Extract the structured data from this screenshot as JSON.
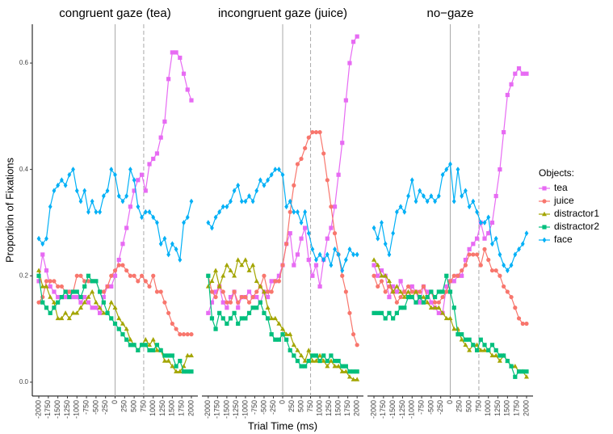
{
  "x_label": "Trial Time (ms)",
  "y_label": "Proportion of Fixations",
  "legend_title": "Objects:",
  "chart_data": [
    {
      "type": "line",
      "title": "congruent gaze (tea)",
      "x": [
        -2000,
        -1900,
        -1800,
        -1700,
        -1600,
        -1500,
        -1400,
        -1300,
        -1200,
        -1100,
        -1000,
        -900,
        -800,
        -700,
        -600,
        -500,
        -400,
        -300,
        -200,
        -100,
        0,
        100,
        200,
        300,
        400,
        500,
        600,
        700,
        800,
        900,
        1000,
        1100,
        1200,
        1300,
        1400,
        1500,
        1600,
        1700,
        1800,
        1900,
        2000
      ],
      "xlim": [
        -2170,
        2170
      ],
      "xticks": [
        -2000,
        -1750,
        -1500,
        -1250,
        -1000,
        -750,
        -500,
        -250,
        0,
        250,
        500,
        750,
        1000,
        1250,
        1500,
        1750,
        2000
      ],
      "ylim": [
        -0.026,
        0.673
      ],
      "yticks": [
        {
          "value": 0,
          "label": "0.0"
        },
        0.2,
        0.4,
        0.6
      ],
      "vlines": [
        {
          "value": 0,
          "style": "solid"
        },
        {
          "value": 750,
          "style": "dashed"
        }
      ],
      "series": [
        {
          "name": "tea",
          "color": "#e76bf3",
          "marker": "square",
          "values": [
            0.19,
            0.24,
            0.21,
            0.18,
            0.17,
            0.16,
            0.16,
            0.16,
            0.17,
            0.16,
            0.16,
            0.15,
            0.16,
            0.15,
            0.14,
            0.14,
            0.13,
            0.16,
            0.18,
            0.18,
            0.2,
            0.23,
            0.26,
            0.29,
            0.33,
            0.36,
            0.38,
            0.39,
            0.36,
            0.41,
            0.42,
            0.43,
            0.46,
            0.49,
            0.57,
            0.62,
            0.62,
            0.61,
            0.58,
            0.55,
            0.53
          ]
        },
        {
          "name": "juice",
          "color": "#f8766d",
          "marker": "circle",
          "values": [
            0.15,
            0.16,
            0.19,
            0.19,
            0.19,
            0.18,
            0.18,
            0.17,
            0.17,
            0.17,
            0.2,
            0.2,
            0.19,
            0.19,
            0.19,
            0.19,
            0.17,
            0.17,
            0.18,
            0.2,
            0.21,
            0.22,
            0.22,
            0.21,
            0.2,
            0.2,
            0.19,
            0.2,
            0.19,
            0.18,
            0.2,
            0.17,
            0.17,
            0.15,
            0.13,
            0.11,
            0.1,
            0.09,
            0.09,
            0.09,
            0.09
          ]
        },
        {
          "name": "distractor1",
          "color": "#a3a500",
          "marker": "triangle",
          "values": [
            0.21,
            0.18,
            0.18,
            0.16,
            0.15,
            0.12,
            0.12,
            0.13,
            0.12,
            0.13,
            0.13,
            0.14,
            0.15,
            0.16,
            0.17,
            0.15,
            0.14,
            0.13,
            0.13,
            0.15,
            0.14,
            0.12,
            0.11,
            0.1,
            0.08,
            0.07,
            0.06,
            0.07,
            0.08,
            0.07,
            0.08,
            0.06,
            0.06,
            0.04,
            0.04,
            0.03,
            0.02,
            0.02,
            0.03,
            0.05,
            0.05
          ]
        },
        {
          "name": "distractor2",
          "color": "#00bf7d",
          "marker": "square",
          "values": [
            0.2,
            0.15,
            0.14,
            0.13,
            0.14,
            0.15,
            0.16,
            0.17,
            0.16,
            0.17,
            0.17,
            0.16,
            0.18,
            0.2,
            0.19,
            0.19,
            0.17,
            0.15,
            0.13,
            0.12,
            0.11,
            0.1,
            0.09,
            0.08,
            0.07,
            0.07,
            0.06,
            0.07,
            0.07,
            0.06,
            0.06,
            0.07,
            0.06,
            0.05,
            0.05,
            0.05,
            0.03,
            0.04,
            0.02,
            0.02,
            0.02
          ]
        },
        {
          "name": "face",
          "color": "#00b0f6",
          "marker": "diamond",
          "values": [
            0.27,
            0.26,
            0.27,
            0.33,
            0.36,
            0.37,
            0.38,
            0.37,
            0.39,
            0.4,
            0.36,
            0.34,
            0.36,
            0.32,
            0.34,
            0.32,
            0.32,
            0.35,
            0.36,
            0.4,
            0.39,
            0.35,
            0.34,
            0.35,
            0.4,
            0.38,
            0.33,
            0.31,
            0.32,
            0.32,
            0.31,
            0.3,
            0.26,
            0.27,
            0.24,
            0.26,
            0.25,
            0.23,
            0.3,
            0.31,
            0.34
          ]
        }
      ]
    },
    {
      "type": "line",
      "title": "incongruent gaze (juice)",
      "x": [
        -2000,
        -1900,
        -1800,
        -1700,
        -1600,
        -1500,
        -1400,
        -1300,
        -1200,
        -1100,
        -1000,
        -900,
        -800,
        -700,
        -600,
        -500,
        -400,
        -300,
        -200,
        -100,
        0,
        100,
        200,
        300,
        400,
        500,
        600,
        700,
        800,
        900,
        1000,
        1100,
        1200,
        1300,
        1400,
        1500,
        1600,
        1700,
        1800,
        1900,
        2000
      ],
      "xlim": [
        -2170,
        2170
      ],
      "xticks": [
        -2000,
        -1750,
        -1500,
        -1250,
        -1000,
        -750,
        -500,
        -250,
        0,
        250,
        500,
        750,
        1000,
        1250,
        1500,
        1750,
        2000
      ],
      "ylim": [
        -0.026,
        0.673
      ],
      "vlines": [
        {
          "value": 0,
          "style": "solid"
        },
        {
          "value": 750,
          "style": "dashed"
        }
      ],
      "series": [
        {
          "name": "tea",
          "color": "#e76bf3",
          "marker": "square",
          "values": [
            0.13,
            0.15,
            0.17,
            0.18,
            0.15,
            0.14,
            0.16,
            0.17,
            0.14,
            0.16,
            0.16,
            0.17,
            0.16,
            0.16,
            0.15,
            0.17,
            0.16,
            0.19,
            0.19,
            0.2,
            0.22,
            0.26,
            0.28,
            0.22,
            0.24,
            0.27,
            0.29,
            0.23,
            0.2,
            0.22,
            0.18,
            0.23,
            0.27,
            0.29,
            0.33,
            0.39,
            0.45,
            0.53,
            0.6,
            0.64,
            0.65
          ]
        },
        {
          "name": "juice",
          "color": "#f8766d",
          "marker": "circle",
          "values": [
            0.2,
            0.17,
            0.16,
            0.18,
            0.17,
            0.15,
            0.15,
            0.17,
            0.15,
            0.16,
            0.16,
            0.15,
            0.16,
            0.17,
            0.18,
            0.2,
            0.17,
            0.17,
            0.19,
            0.19,
            0.22,
            0.26,
            0.32,
            0.37,
            0.41,
            0.42,
            0.44,
            0.46,
            0.47,
            0.47,
            0.47,
            0.43,
            0.38,
            0.33,
            0.28,
            0.24,
            0.2,
            0.17,
            0.13,
            0.09,
            0.07
          ]
        },
        {
          "name": "distractor1",
          "color": "#a3a500",
          "marker": "triangle",
          "values": [
            0.18,
            0.19,
            0.21,
            0.18,
            0.2,
            0.22,
            0.21,
            0.2,
            0.23,
            0.22,
            0.23,
            0.21,
            0.22,
            0.19,
            0.18,
            0.17,
            0.14,
            0.12,
            0.12,
            0.11,
            0.1,
            0.09,
            0.09,
            0.07,
            0.06,
            0.05,
            0.04,
            0.06,
            0.04,
            0.04,
            0.05,
            0.04,
            0.03,
            0.04,
            0.03,
            0.03,
            0.02,
            0.02,
            0.01,
            0.005,
            0.005
          ]
        },
        {
          "name": "distractor2",
          "color": "#00bf7d",
          "marker": "square",
          "values": [
            0.2,
            0.12,
            0.1,
            0.13,
            0.12,
            0.11,
            0.12,
            0.13,
            0.11,
            0.12,
            0.12,
            0.13,
            0.14,
            0.14,
            0.15,
            0.13,
            0.12,
            0.09,
            0.08,
            0.08,
            0.09,
            0.08,
            0.06,
            0.05,
            0.04,
            0.03,
            0.03,
            0.04,
            0.05,
            0.05,
            0.04,
            0.05,
            0.04,
            0.05,
            0.04,
            0.04,
            0.03,
            0.03,
            0.02,
            0.02,
            0.02
          ]
        },
        {
          "name": "face",
          "color": "#00b0f6",
          "marker": "diamond",
          "values": [
            0.3,
            0.29,
            0.31,
            0.32,
            0.33,
            0.33,
            0.34,
            0.36,
            0.37,
            0.34,
            0.34,
            0.35,
            0.34,
            0.36,
            0.38,
            0.37,
            0.38,
            0.39,
            0.4,
            0.4,
            0.39,
            0.33,
            0.34,
            0.32,
            0.32,
            0.3,
            0.32,
            0.28,
            0.25,
            0.23,
            0.24,
            0.23,
            0.24,
            0.22,
            0.25,
            0.24,
            0.21,
            0.23,
            0.25,
            0.24,
            0.24
          ]
        }
      ]
    },
    {
      "type": "line",
      "title": "no−gaze",
      "x": [
        -2000,
        -1900,
        -1800,
        -1700,
        -1600,
        -1500,
        -1400,
        -1300,
        -1200,
        -1100,
        -1000,
        -900,
        -800,
        -700,
        -600,
        -500,
        -400,
        -300,
        -200,
        -100,
        0,
        100,
        200,
        300,
        400,
        500,
        600,
        700,
        800,
        900,
        1000,
        1100,
        1200,
        1300,
        1400,
        1500,
        1600,
        1700,
        1800,
        1900,
        2000
      ],
      "xlim": [
        -2170,
        2170
      ],
      "xticks": [
        -2000,
        -1750,
        -1500,
        -1250,
        -1000,
        -750,
        -500,
        -250,
        0,
        250,
        500,
        750,
        1000,
        1250,
        1500,
        1750,
        2000
      ],
      "ylim": [
        -0.026,
        0.673
      ],
      "vlines": [
        {
          "value": 0,
          "style": "solid"
        },
        {
          "value": 750,
          "style": "dashed"
        }
      ],
      "series": [
        {
          "name": "tea",
          "color": "#e76bf3",
          "marker": "square",
          "values": [
            0.22,
            0.2,
            0.21,
            0.2,
            0.16,
            0.18,
            0.17,
            0.19,
            0.17,
            0.16,
            0.18,
            0.17,
            0.15,
            0.18,
            0.17,
            0.15,
            0.14,
            0.13,
            0.13,
            0.18,
            0.19,
            0.19,
            0.2,
            0.2,
            0.23,
            0.25,
            0.26,
            0.27,
            0.3,
            0.27,
            0.28,
            0.3,
            0.35,
            0.4,
            0.47,
            0.54,
            0.56,
            0.58,
            0.59,
            0.58,
            0.58
          ]
        },
        {
          "name": "juice",
          "color": "#f8766d",
          "marker": "circle",
          "values": [
            0.2,
            0.18,
            0.19,
            0.17,
            0.18,
            0.17,
            0.15,
            0.16,
            0.17,
            0.18,
            0.17,
            0.17,
            0.17,
            0.18,
            0.16,
            0.17,
            0.15,
            0.15,
            0.16,
            0.17,
            0.19,
            0.2,
            0.2,
            0.21,
            0.22,
            0.24,
            0.24,
            0.24,
            0.22,
            0.25,
            0.23,
            0.21,
            0.21,
            0.2,
            0.18,
            0.17,
            0.16,
            0.14,
            0.12,
            0.11,
            0.11
          ]
        },
        {
          "name": "distractor1",
          "color": "#a3a500",
          "marker": "triangle",
          "values": [
            0.23,
            0.22,
            0.2,
            0.2,
            0.19,
            0.17,
            0.18,
            0.17,
            0.16,
            0.17,
            0.16,
            0.17,
            0.16,
            0.16,
            0.15,
            0.14,
            0.14,
            0.14,
            0.13,
            0.12,
            0.12,
            0.1,
            0.1,
            0.08,
            0.07,
            0.06,
            0.07,
            0.07,
            0.06,
            0.06,
            0.06,
            0.05,
            0.05,
            0.04,
            0.05,
            0.04,
            0.03,
            0.03,
            0.02,
            0.02,
            0.01
          ]
        },
        {
          "name": "distractor2",
          "color": "#00bf7d",
          "marker": "square",
          "values": [
            0.13,
            0.13,
            0.13,
            0.12,
            0.13,
            0.12,
            0.13,
            0.14,
            0.14,
            0.16,
            0.16,
            0.15,
            0.16,
            0.15,
            0.16,
            0.17,
            0.16,
            0.17,
            0.17,
            0.2,
            0.17,
            0.14,
            0.09,
            0.09,
            0.08,
            0.08,
            0.07,
            0.06,
            0.08,
            0.07,
            0.06,
            0.07,
            0.06,
            0.05,
            0.05,
            0.04,
            0.03,
            0.01,
            0.02,
            0.02,
            0.02
          ]
        },
        {
          "name": "face",
          "color": "#00b0f6",
          "marker": "diamond",
          "values": [
            0.29,
            0.27,
            0.3,
            0.26,
            0.24,
            0.28,
            0.32,
            0.33,
            0.32,
            0.35,
            0.38,
            0.34,
            0.36,
            0.35,
            0.34,
            0.35,
            0.34,
            0.35,
            0.39,
            0.4,
            0.41,
            0.34,
            0.4,
            0.35,
            0.36,
            0.33,
            0.34,
            0.32,
            0.3,
            0.3,
            0.31,
            0.26,
            0.27,
            0.24,
            0.22,
            0.21,
            0.22,
            0.24,
            0.25,
            0.26,
            0.28
          ]
        }
      ]
    }
  ]
}
